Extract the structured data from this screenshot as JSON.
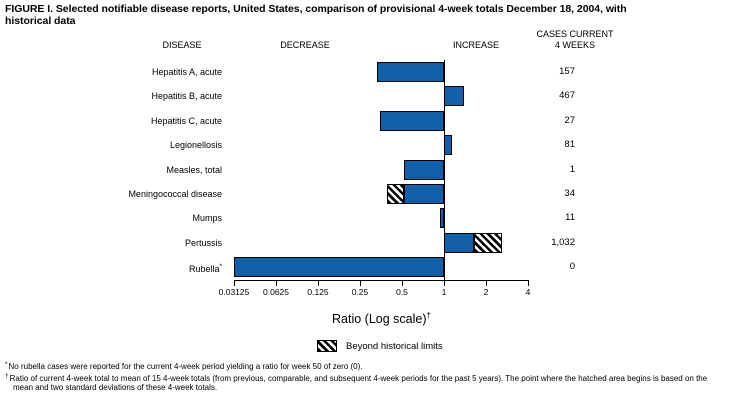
{
  "title": {
    "line1": "FIGURE I. Selected notifiable disease reports, United States, comparison of provisional 4-week totals December 18, 2004, with",
    "line2": "historical data"
  },
  "columns": {
    "disease": "DISEASE",
    "decrease": "DECREASE",
    "increase": "INCREASE",
    "cases_line1": "CASES CURRENT",
    "cases_line2": "4 WEEKS"
  },
  "colors": {
    "bar_blue": "#115fa8",
    "hatch_stripe": "#000000",
    "text": "#000000"
  },
  "chart_data": {
    "type": "bar",
    "orientation": "horizontal",
    "x_scale": "log2",
    "xlim": [
      0.03125,
      4
    ],
    "baseline": 1,
    "xlabel": "Ratio (Log scale)",
    "xlabel_sup": "†",
    "legend_label": "Beyond historical limits",
    "x_ticks": [
      0.03125,
      0.0625,
      0.125,
      0.25,
      0.5,
      1,
      2,
      4
    ],
    "x_tick_labels": [
      "0.03125",
      "0.0625",
      "0.125",
      "0.25",
      "0.5",
      "1",
      "2",
      "4"
    ],
    "rows": [
      {
        "disease": "Hepatitis A, acute",
        "cases": "157",
        "ratio": 0.33,
        "hatch": null
      },
      {
        "disease": "Hepatitis B, acute",
        "cases": "467",
        "ratio": 1.4,
        "hatch": null
      },
      {
        "disease": "Hepatitis C, acute",
        "cases": "27",
        "ratio": 0.35,
        "hatch": null
      },
      {
        "disease": "Legionellosis",
        "cases": "81",
        "ratio": 1.15,
        "hatch": null
      },
      {
        "disease": "Measles, total",
        "cases": "1",
        "ratio": 0.52,
        "hatch": null
      },
      {
        "disease": "Meningococcal disease",
        "cases": "34",
        "ratio": 0.39,
        "hatch": [
          0.39,
          0.52
        ]
      },
      {
        "disease": "Mumps",
        "cases": "11",
        "ratio": 0.93,
        "hatch": null
      },
      {
        "disease": "Pertussis",
        "cases": "1,032",
        "ratio": 2.6,
        "hatch": [
          1.64,
          2.6
        ]
      },
      {
        "disease": "Rubella",
        "sup": "*",
        "cases": "0",
        "ratio": 0.03125,
        "hatch": null
      }
    ]
  },
  "footnotes": [
    {
      "marker": "*",
      "text": "No rubella cases were reported for the current 4-week period yielding a ratio for week 50 of zero (0)."
    },
    {
      "marker": "†",
      "text": "Ratio of current 4-week total to mean of 15 4-week totals (from previous, comparable, and subsequent 4-week periods for the past 5 years). The point where the hatched area begins is based on the mean and two standard deviations of these 4-week totals."
    }
  ]
}
